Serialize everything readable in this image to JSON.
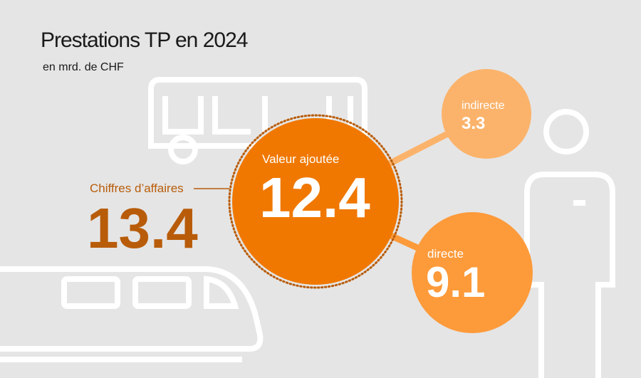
{
  "colors": {
    "background": "#e5e5e5",
    "main": "#f07800",
    "indirect": "#fbb36b",
    "direct": "#fd9a3a",
    "revenue": "#b85c0a",
    "outline": "#ffffff"
  },
  "chart_data": {
    "type": "bubble",
    "title": "Prestations TP en 2024",
    "subtitle": "en mrd. de CHF",
    "revenue": {
      "label": "Chiffres d’affaires",
      "value": "13.4"
    },
    "value_added": {
      "label": "Valeur ajoutée",
      "value": "12.4"
    },
    "components": [
      {
        "label": "indirecte",
        "value": "3.3"
      },
      {
        "label": "directe",
        "value": "9.1"
      }
    ]
  }
}
